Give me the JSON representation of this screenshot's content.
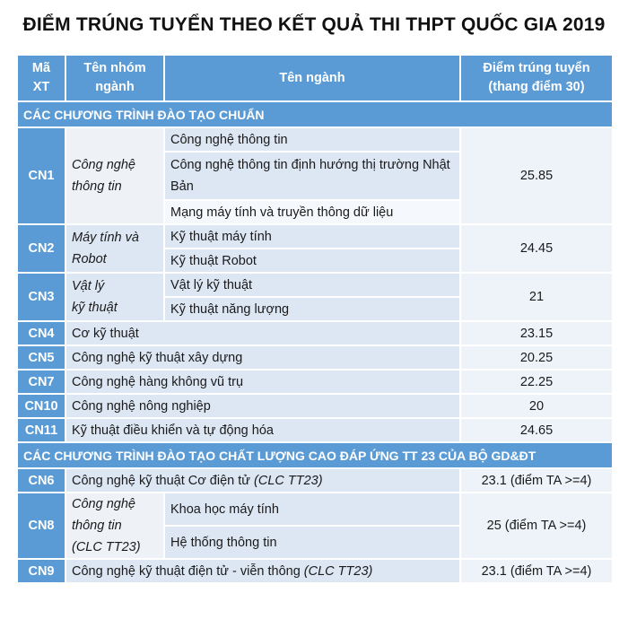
{
  "title": "ĐIỂM TRÚNG TUYỂN THEO KẾT QUẢ THI THPT QUỐC GIA 2019",
  "headers": {
    "code": [
      "Mã",
      "XT"
    ],
    "group": [
      "Tên nhóm",
      "ngành"
    ],
    "major": "Tên ngành",
    "score": [
      "Điểm trúng tuyển",
      "(thang điểm 30)"
    ]
  },
  "sections": {
    "standard": "CÁC CHƯƠNG TRÌNH ĐÀO TẠO CHUẨN",
    "high_quality": "CÁC CHƯƠNG TRÌNH ĐÀO TẠO CHẤT LƯỢNG CAO ĐÁP ỨNG TT 23 CỦA BỘ GD&ĐT"
  },
  "rows": {
    "cn1": {
      "code": "CN1",
      "group": [
        "Công nghệ",
        "thông tin"
      ],
      "majors": [
        "Công nghệ thông tin",
        "Công nghệ thông tin định hướng thị trường Nhật Bản",
        "Mạng máy tính và truyền thông dữ liệu"
      ],
      "score": "25.85"
    },
    "cn2": {
      "code": "CN2",
      "group": [
        "Máy tính và",
        "Robot"
      ],
      "majors": [
        "Kỹ thuật máy tính",
        "Kỹ thuật Robot"
      ],
      "score": "24.45"
    },
    "cn3": {
      "code": "CN3",
      "group": [
        "Vật lý",
        "kỹ thuật"
      ],
      "majors": [
        "Vật lý kỹ thuật",
        "Kỹ thuật năng lượng"
      ],
      "score": "21"
    },
    "cn4": {
      "code": "CN4",
      "major": "Cơ kỹ thuật",
      "score": "23.15"
    },
    "cn5": {
      "code": "CN5",
      "major": "Công nghệ kỹ thuật xây dựng",
      "score": "20.25"
    },
    "cn7": {
      "code": "CN7",
      "major": "Công nghệ hàng không vũ trụ",
      "score": "22.25"
    },
    "cn10": {
      "code": "CN10",
      "major": "Công nghệ nông nghiệp",
      "score": "20"
    },
    "cn11": {
      "code": "CN11",
      "major": "Kỹ thuật điều khiển và tự động hóa",
      "score": "24.65"
    },
    "cn6": {
      "code": "CN6",
      "major": "Công nghệ kỹ thuật Cơ điện tử",
      "note": "(CLC TT23)",
      "score": "23.1 (điểm TA >=4)"
    },
    "cn8": {
      "code": "CN8",
      "group": [
        "Công nghệ",
        "thông tin",
        "(CLC TT23)"
      ],
      "majors": [
        "Khoa học máy tính",
        "Hệ thống thông tin"
      ],
      "score": "25 (điểm TA >=4)"
    },
    "cn9": {
      "code": "CN9",
      "major": "Công nghệ kỹ thuật điện tử - viễn thông",
      "note": "(CLC TT23)",
      "score": "23.1 (điểm TA >=4)"
    }
  }
}
